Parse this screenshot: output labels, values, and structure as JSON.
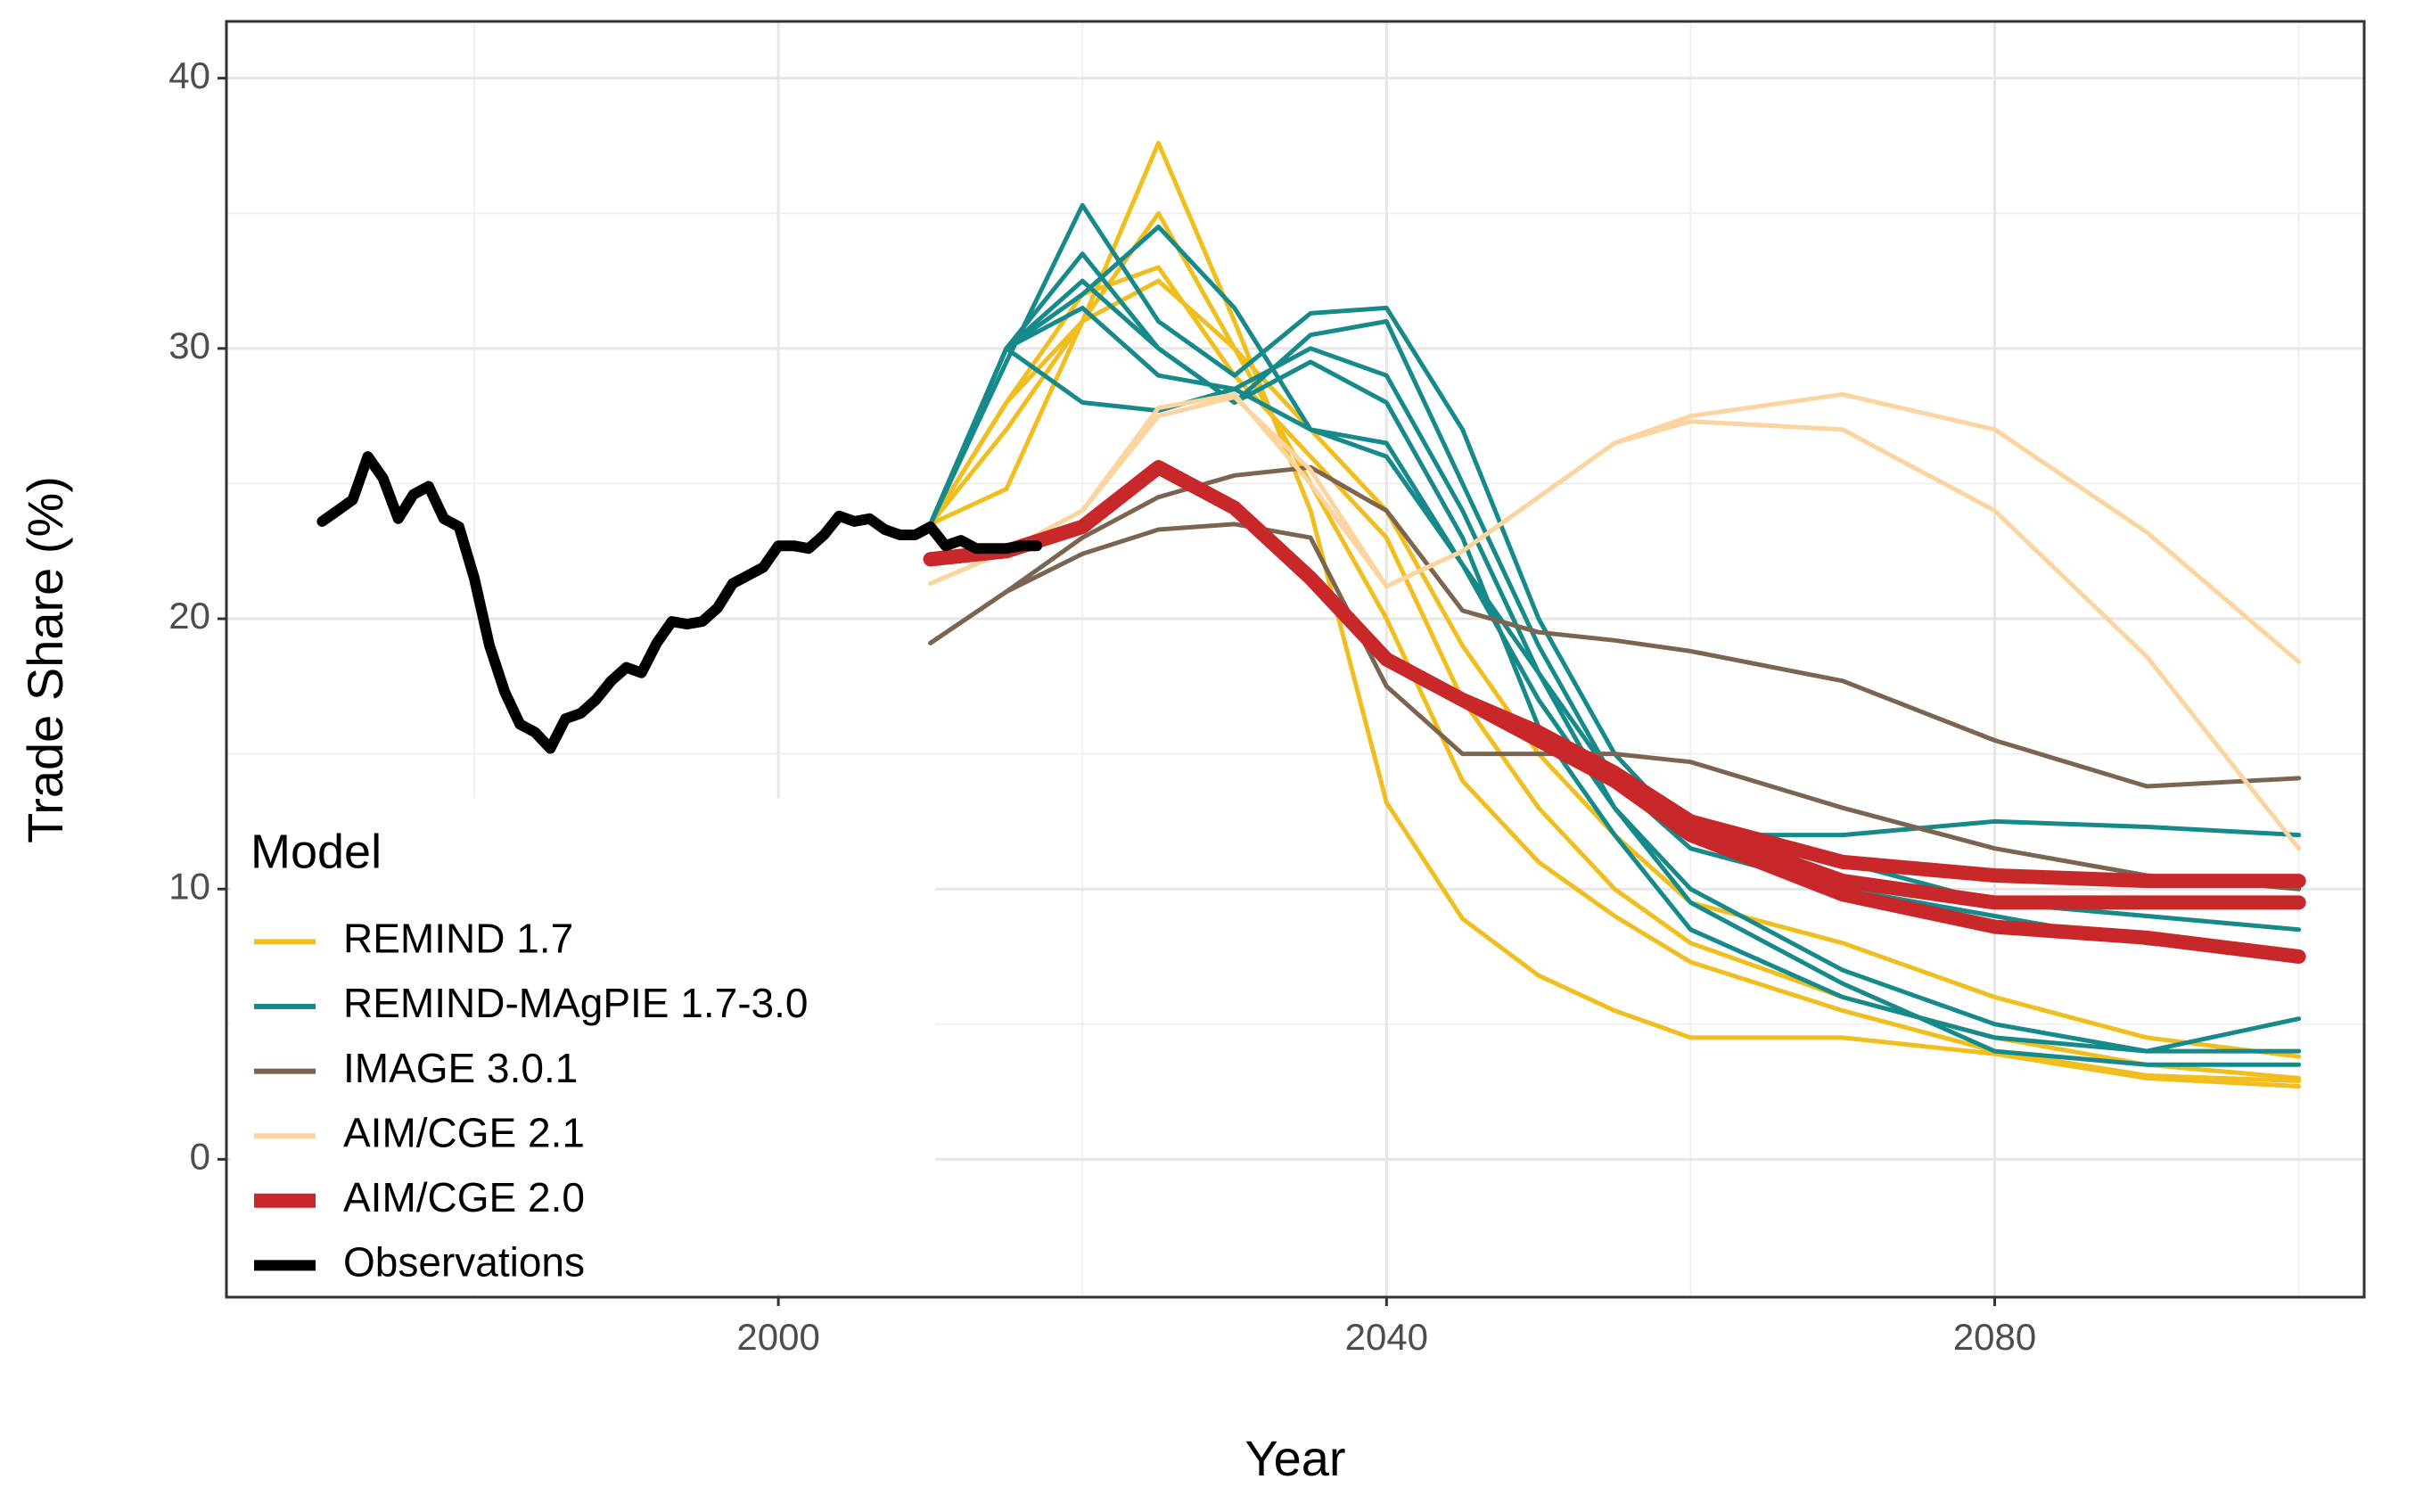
{
  "chart_data": {
    "type": "line",
    "xlabel": "Year",
    "ylabel": "Trade Share (%)",
    "legend_title": "Model",
    "legend": "bottom-left",
    "grid": true,
    "xlim": [
      1963.7,
      2104.3
    ],
    "xticks": [
      2000,
      2040,
      2080
    ],
    "xminor": [
      1980,
      2020,
      2060,
      2100
    ],
    "ylim": [
      -5.1,
      42.1
    ],
    "yticks": [
      0,
      10,
      20,
      30,
      40
    ],
    "yminor": [
      5,
      15,
      25,
      35
    ],
    "x": [
      2010,
      2015,
      2020,
      2025,
      2030,
      2035,
      2040,
      2045,
      2050,
      2055,
      2060,
      2070,
      2080,
      2090,
      2100
    ],
    "series": [
      {
        "name": "REMIND 1.7",
        "color": "#f0be1e",
        "runs": [
          [
            23.5,
            24.8,
            31,
            37.6,
            31,
            24,
            13.2,
            8.9,
            6.8,
            5.5,
            4.5,
            4.5,
            3.9,
            3,
            2.7
          ],
          [
            23.5,
            27,
            31,
            35,
            30,
            25,
            20,
            14,
            11,
            9,
            7.3,
            5.5,
            4,
            3.1,
            2.9
          ],
          [
            23.5,
            28,
            32,
            33,
            29,
            26,
            23,
            17,
            13,
            10,
            8,
            6,
            4.5,
            3.5,
            3
          ],
          [
            23.5,
            28,
            31,
            32.5,
            30,
            27,
            24,
            19,
            15,
            12,
            9.5,
            8,
            6,
            4.5,
            3.8
          ]
        ]
      },
      {
        "name": "REMIND-MAgPIE 1.7-3.0",
        "color": "#168a8a",
        "runs": [
          [
            23.5,
            29.5,
            35.3,
            31,
            29,
            31.3,
            31.5,
            27,
            20,
            15,
            12,
            11,
            9.5,
            9,
            8.5
          ],
          [
            23.5,
            30,
            33.5,
            30,
            28,
            30.5,
            31,
            25,
            19,
            14,
            11.5,
            10,
            9,
            8,
            7.5
          ],
          [
            23.5,
            30,
            32,
            34.5,
            31.5,
            27,
            26,
            22,
            18,
            14,
            12,
            12,
            12.5,
            12.3,
            12
          ],
          [
            23.5,
            30,
            28,
            27.7,
            28.5,
            27,
            26.5,
            22,
            17,
            13,
            10,
            7,
            5,
            4,
            4
          ],
          [
            23.5,
            30,
            31.5,
            29,
            28.5,
            30,
            29,
            24,
            18,
            13,
            9.5,
            6.5,
            4,
            3.5,
            3.5
          ],
          [
            23.5,
            30,
            32.5,
            30,
            28,
            29.5,
            28,
            23,
            16,
            12,
            8.5,
            6,
            4.5,
            4,
            5.2
          ]
        ]
      },
      {
        "name": "IMAGE 3.0.1",
        "color": "#7b6550",
        "runs": [
          [
            19.1,
            21,
            22.4,
            23.3,
            23.5,
            23,
            17.5,
            15,
            15,
            15,
            14.7,
            13,
            11.5,
            10.5,
            10
          ],
          [
            19.1,
            21,
            23,
            24.5,
            25.3,
            25.6,
            24,
            20.3,
            19.5,
            19.2,
            18.8,
            17.7,
            15.5,
            13.8,
            14.1
          ]
        ]
      },
      {
        "name": "AIM/CGE 2.1",
        "color": "#fbd4a0",
        "runs": [
          [
            21.3,
            22.5,
            24,
            27.8,
            28.3,
            25,
            21.2,
            22.5,
            24.5,
            26.5,
            27.5,
            28.3,
            27,
            23.2,
            18.4
          ],
          [
            21.3,
            22.5,
            24,
            27.5,
            28.2,
            25.5,
            21.2,
            22.5,
            24.5,
            26.5,
            27.3,
            27,
            24,
            18.6,
            11.5
          ]
        ]
      },
      {
        "name": "AIM/CGE 2.0",
        "color": "#c8282a",
        "runs": [
          [
            22.2,
            22.5,
            23.4,
            25.6,
            24.1,
            21.5,
            18.5,
            17,
            15.8,
            14.3,
            12.5,
            11,
            10.5,
            10.3,
            10.3
          ],
          [
            22.2,
            22.5,
            23.4,
            25.6,
            24.1,
            21.5,
            18.5,
            17,
            15.5,
            14,
            12,
            9.8,
            8.6,
            8.2,
            7.5
          ],
          [
            22.2,
            22.5,
            23.4,
            25.6,
            24.1,
            21.5,
            18.5,
            17,
            15.8,
            14.2,
            12.3,
            10.3,
            9.5,
            9.5,
            9.5
          ]
        ]
      },
      {
        "name": "Observations",
        "color": "#000000",
        "x": [
          1970,
          1971,
          1972,
          1973,
          1974,
          1975,
          1976,
          1977,
          1978,
          1979,
          1980,
          1981,
          1982,
          1983,
          1984,
          1985,
          1986,
          1987,
          1988,
          1989,
          1990,
          1991,
          1992,
          1993,
          1994,
          1995,
          1996,
          1997,
          1998,
          1999,
          2000,
          2001,
          2002,
          2003,
          2004,
          2005,
          2006,
          2007,
          2008,
          2009,
          2010,
          2011,
          2012,
          2013,
          2014,
          2015,
          2016,
          2017
        ],
        "values": [
          23.6,
          24,
          24.4,
          26,
          25.2,
          23.7,
          24.6,
          24.9,
          23.7,
          23.4,
          21.5,
          19,
          17.3,
          16.1,
          15.8,
          15.2,
          16.3,
          16.5,
          17,
          17.7,
          18.2,
          18,
          19.1,
          19.9,
          19.8,
          19.9,
          20.4,
          21.3,
          21.6,
          21.9,
          22.7,
          22.7,
          22.6,
          23.1,
          23.8,
          23.6,
          23.7,
          23.3,
          23.1,
          23.1,
          23.4,
          22.7,
          22.9,
          22.6,
          22.6,
          22.6,
          22.7,
          22.7
        ]
      }
    ]
  }
}
